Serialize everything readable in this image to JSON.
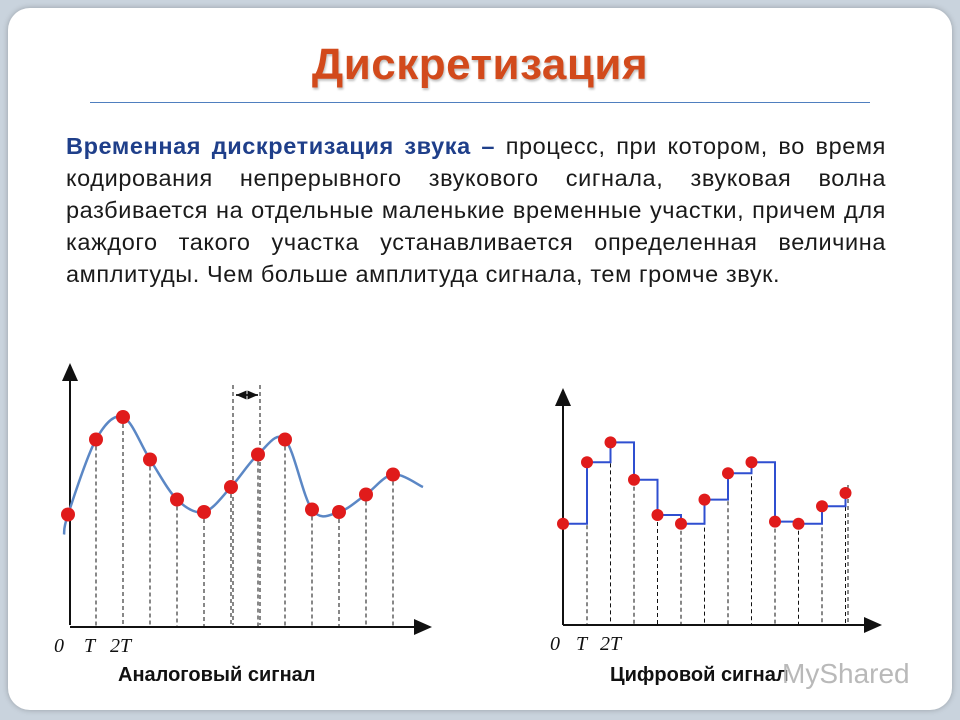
{
  "slide": {
    "title": "Дискретизация",
    "definition_term": "Временная дискретизация звука",
    "definition_dash": " – ",
    "definition_rest": "процесс, при котором, во время кодирования непрерывного звукового сигнала, звуковая волна разбивается на отдельные маленькие временные участки, причем для каждого такого участка устанавливается определенная величина амплитуды. Чем больше амплитуда сигнала, тем громче звук."
  },
  "analog": {
    "caption": "Аналоговый сигнал",
    "origin_label": "0",
    "tick1_label": "T",
    "tick2_label": "2T",
    "sample_levels": [
      0.45,
      0.75,
      0.84,
      0.67,
      0.51,
      0.46,
      0.56,
      0.69,
      0.75,
      0.47,
      0.46,
      0.53,
      0.61
    ]
  },
  "digital": {
    "caption": "Цифровой сигнал",
    "origin_label": "0",
    "tick1_label": "T",
    "tick2_label": "2T",
    "sample_levels": [
      0.46,
      0.74,
      0.83,
      0.66,
      0.5,
      0.46,
      0.57,
      0.69,
      0.74,
      0.47,
      0.46,
      0.54,
      0.6
    ]
  },
  "colors": {
    "title": "#d24a1c",
    "term": "#1f3f8a",
    "curve": "#5b87c5",
    "dot": "#e01b1b",
    "step": "#2f4fd0"
  },
  "watermark": "MyShared"
}
